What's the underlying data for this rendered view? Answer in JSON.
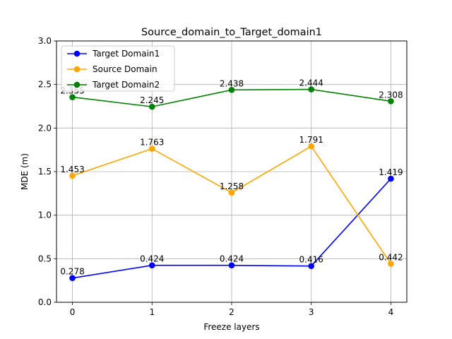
{
  "chart_data": {
    "type": "line",
    "title": "Source_domain_to_Target_domain1",
    "xlabel": "Freeze layers",
    "ylabel": "MDE (m)",
    "x": [
      0,
      1,
      2,
      3,
      4
    ],
    "xticks": [
      "0",
      "1",
      "2",
      "3",
      "4"
    ],
    "yticks": [
      "0.0",
      "0.5",
      "1.0",
      "1.5",
      "2.0",
      "2.5",
      "3.0"
    ],
    "ylim": [
      0,
      3.0
    ],
    "grid": true,
    "legend_position": "upper-left",
    "series": [
      {
        "name": "Target Domain1",
        "color": "#0000ff",
        "values": [
          0.278,
          0.424,
          0.424,
          0.416,
          1.419
        ],
        "labels": [
          "0.278",
          "0.424",
          "0.424",
          "0.416",
          "1.419"
        ]
      },
      {
        "name": "Source Domain",
        "color": "#ffa500",
        "values": [
          1.453,
          1.763,
          1.258,
          1.791,
          0.442
        ],
        "labels": [
          "1.453",
          "1.763",
          "1.258",
          "1.791",
          "0.442"
        ]
      },
      {
        "name": "Target Domain2",
        "color": "#008000",
        "values": [
          2.355,
          2.245,
          2.438,
          2.444,
          2.308
        ],
        "labels": [
          "2.355",
          "2.245",
          "2.438",
          "2.444",
          "2.308"
        ]
      }
    ]
  }
}
